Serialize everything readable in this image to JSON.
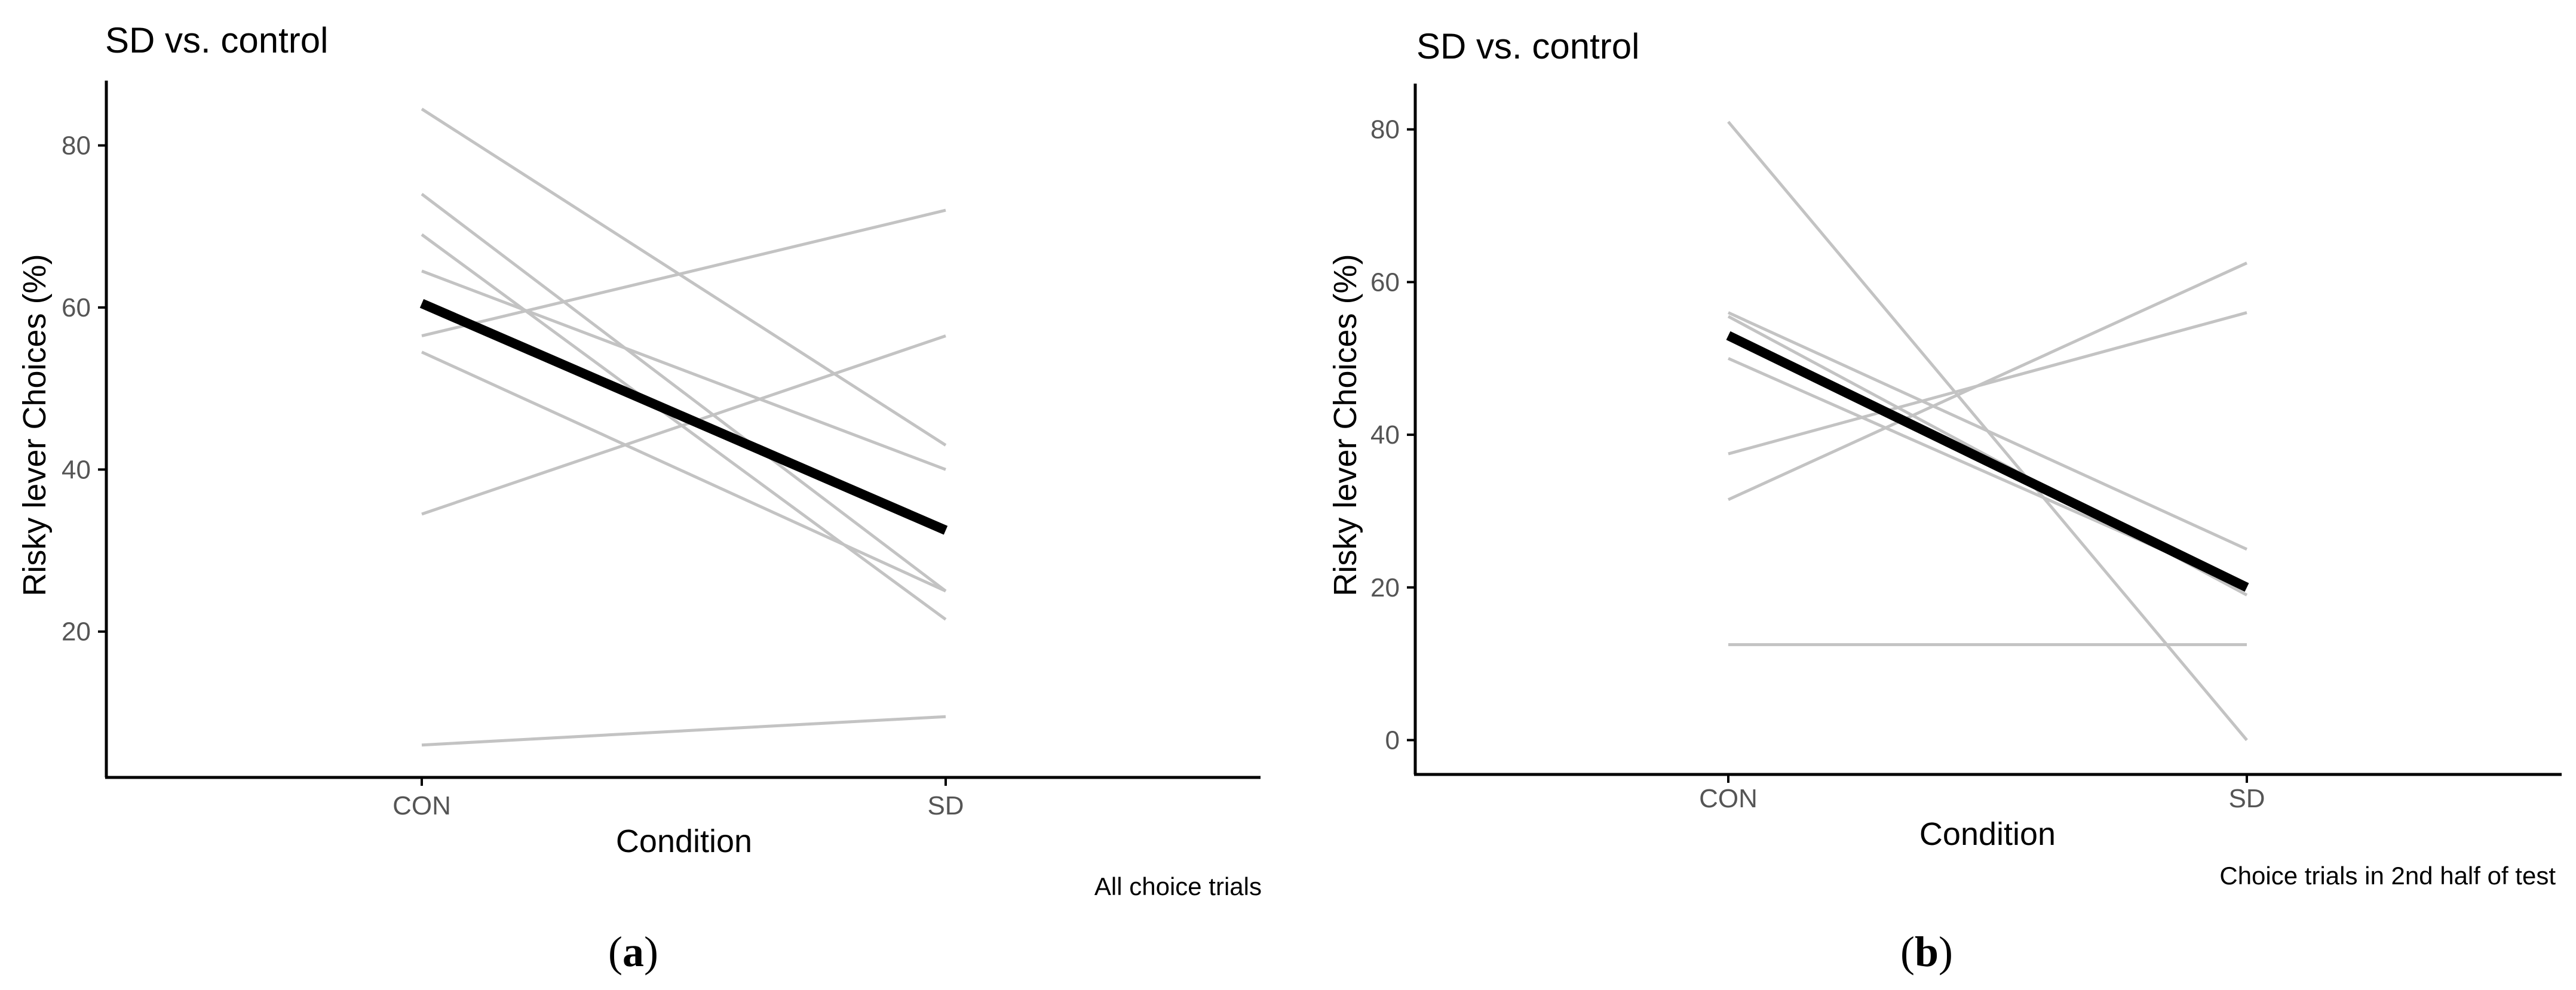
{
  "colors": {
    "subject_line": "#c3c3c3",
    "mean_line": "#000000",
    "axis": "#000000",
    "tick_label": "#555555",
    "text": "#000000"
  },
  "panels": [
    {
      "title": "SD vs. control",
      "caption_prefix": "(",
      "caption_letter": "a",
      "caption_suffix": ")",
      "note": "All choice trials"
    },
    {
      "title": "SD vs. control",
      "caption_prefix": "(",
      "caption_letter": "b",
      "caption_suffix": ")",
      "note": "Choice trials in 2nd half of test"
    }
  ],
  "chart_data": [
    {
      "type": "line",
      "title": "SD vs. control",
      "xlabel": "Condition",
      "ylabel": "Risky lever Choices (%)",
      "categories": [
        "CON",
        "SD"
      ],
      "yticks": [
        20,
        40,
        60,
        80
      ],
      "ylim": [
        2,
        88
      ],
      "grid": false,
      "series": [
        {
          "name": "subject-1",
          "role": "subject",
          "values": [
            84.5,
            43
          ]
        },
        {
          "name": "subject-2",
          "role": "subject",
          "values": [
            74,
            25
          ]
        },
        {
          "name": "subject-3",
          "role": "subject",
          "values": [
            69,
            21.5
          ]
        },
        {
          "name": "subject-4",
          "role": "subject",
          "values": [
            64.5,
            40
          ]
        },
        {
          "name": "subject-5",
          "role": "subject",
          "values": [
            56.5,
            72
          ]
        },
        {
          "name": "subject-6",
          "role": "subject",
          "values": [
            54.5,
            25
          ]
        },
        {
          "name": "subject-7",
          "role": "subject",
          "values": [
            34.5,
            56.5
          ]
        },
        {
          "name": "subject-8",
          "role": "subject",
          "values": [
            6,
            9.5
          ]
        },
        {
          "name": "mean",
          "role": "mean",
          "values": [
            60.5,
            32.5
          ]
        }
      ]
    },
    {
      "type": "line",
      "title": "SD vs. control",
      "xlabel": "Condition",
      "ylabel": "Risky lever Choices (%)",
      "categories": [
        "CON",
        "SD"
      ],
      "yticks": [
        0,
        20,
        40,
        60,
        80
      ],
      "ylim": [
        -4.5,
        86
      ],
      "grid": false,
      "series": [
        {
          "name": "subject-1",
          "role": "subject",
          "values": [
            81,
            0
          ]
        },
        {
          "name": "subject-2",
          "role": "subject",
          "values": [
            56,
            25
          ]
        },
        {
          "name": "subject-3",
          "role": "subject",
          "values": [
            55.5,
            19
          ]
        },
        {
          "name": "subject-4",
          "role": "subject",
          "values": [
            50,
            20
          ]
        },
        {
          "name": "subject-5",
          "role": "subject",
          "values": [
            37.5,
            56
          ]
        },
        {
          "name": "subject-6",
          "role": "subject",
          "values": [
            31.5,
            62.5
          ]
        },
        {
          "name": "subject-7",
          "role": "subject",
          "values": [
            12.5,
            12.5
          ]
        },
        {
          "name": "mean",
          "role": "mean",
          "values": [
            53,
            20
          ]
        }
      ]
    }
  ]
}
